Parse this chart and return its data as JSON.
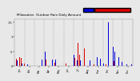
{
  "title": "Milwaukee  Outdoor Rain Daily Amount",
  "legend_color_current": "#0000dd",
  "legend_color_previous": "#dd0000",
  "plot_bg_color": "#e8e8e8",
  "bar_width": 0.45,
  "ylim_max": 1.6,
  "month_starts": [
    0,
    31,
    59,
    90,
    120,
    151,
    181,
    212,
    243,
    273,
    304,
    334
  ],
  "month_labels": [
    "Jan",
    "Feb",
    "Mar",
    "Apr",
    "May",
    "Jun",
    "Jul",
    "Aug",
    "Sep",
    "Oct",
    "Nov",
    "Dec"
  ],
  "num_days": 365,
  "ytick_labels": [
    "0",
    ".5",
    "1",
    "1.5"
  ],
  "ytick_vals": [
    0.0,
    0.5,
    1.0,
    1.5
  ],
  "title_fontsize": 3.0,
  "xtick_fontsize": 2.2,
  "ytick_fontsize": 2.5
}
